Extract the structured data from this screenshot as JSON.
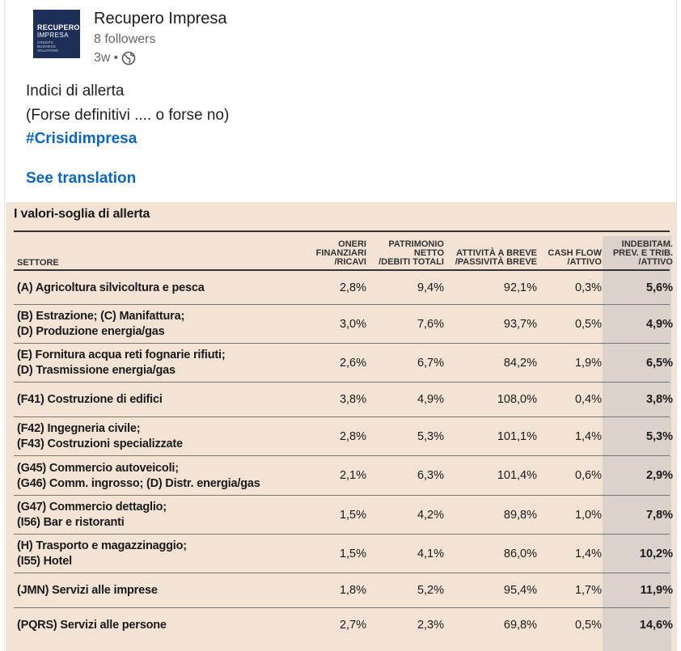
{
  "post": {
    "author": "Recupero Impresa",
    "followers": "8 followers",
    "time": "3w",
    "logo": {
      "line1": "RECUPERO",
      "line2": "IMPRESA",
      "line3": "CREDITS",
      "line4": "BUSINESS",
      "line5": "SOLUTIONS"
    },
    "lines": [
      "Indici di allerta",
      "(Forse definitivi .... o forse no)"
    ],
    "hashtag": "#Crisidimpresa",
    "see_translation": "See translation"
  },
  "table": {
    "title": "I valori-soglia di allerta",
    "headers": {
      "settore": "SETTORE",
      "col1": [
        "ONERI",
        "FINANZIARI",
        "/RICAVI"
      ],
      "col2": [
        "PATRIMONIO",
        "NETTO",
        "/DEBITI TOTALI"
      ],
      "col3": [
        "ATTIVITÀ A BREVE",
        "/PASSIVITÀ BREVE"
      ],
      "col4": [
        "CASH FLOW",
        "/ATTIVO"
      ],
      "col5": [
        "INDEBITAM.",
        "PREV. E TRIB.",
        "/ATTIVO"
      ]
    },
    "rows": [
      {
        "name": [
          "(A) Agricoltura silvicoltura e pesca"
        ],
        "v": [
          "2,8%",
          "9,4%",
          "92,1%",
          "0,3%",
          "5,6%"
        ]
      },
      {
        "name": [
          "(B) Estrazione; (C) Manifattura;",
          "(D) Produzione energia/gas"
        ],
        "v": [
          "3,0%",
          "7,6%",
          "93,7%",
          "0,5%",
          "4,9%"
        ]
      },
      {
        "name": [
          "(E) Fornitura acqua reti fognarie rifiuti;",
          "(D) Trasmissione energia/gas"
        ],
        "v": [
          "2,6%",
          "6,7%",
          "84,2%",
          "1,9%",
          "6,5%"
        ]
      },
      {
        "name": [
          "(F41) Costruzione di edifici"
        ],
        "v": [
          "3,8%",
          "4,9%",
          "108,0%",
          "0,4%",
          "3,8%"
        ]
      },
      {
        "name": [
          "(F42) Ingegneria civile;",
          "(F43) Costruzioni specializzate"
        ],
        "v": [
          "2,8%",
          "5,3%",
          "101,1%",
          "1,4%",
          "5,3%"
        ]
      },
      {
        "name": [
          "(G45) Commercio autoveicoli;",
          "(G46) Comm. ingrosso; (D) Distr. energia/gas"
        ],
        "v": [
          "2,1%",
          "6,3%",
          "101,4%",
          "0,6%",
          "2,9%"
        ]
      },
      {
        "name": [
          "(G47) Commercio dettaglio;",
          "(I56) Bar e ristoranti"
        ],
        "v": [
          "1,5%",
          "4,2%",
          "89,8%",
          "1,0%",
          "7,8%"
        ]
      },
      {
        "name": [
          "(H) Trasporto e magazzinaggio;",
          "(I55) Hotel"
        ],
        "v": [
          "1,5%",
          "4,1%",
          "86,0%",
          "1,4%",
          "10,2%"
        ]
      },
      {
        "name": [
          "(JMN) Servizi alle imprese"
        ],
        "v": [
          "1,8%",
          "5,2%",
          "95,4%",
          "1,7%",
          "11,9%"
        ]
      },
      {
        "name": [
          "(PQRS) Servizi alle persone"
        ],
        "v": [
          "2,7%",
          "2,3%",
          "69,8%",
          "0,5%",
          "14,6%"
        ]
      }
    ]
  }
}
